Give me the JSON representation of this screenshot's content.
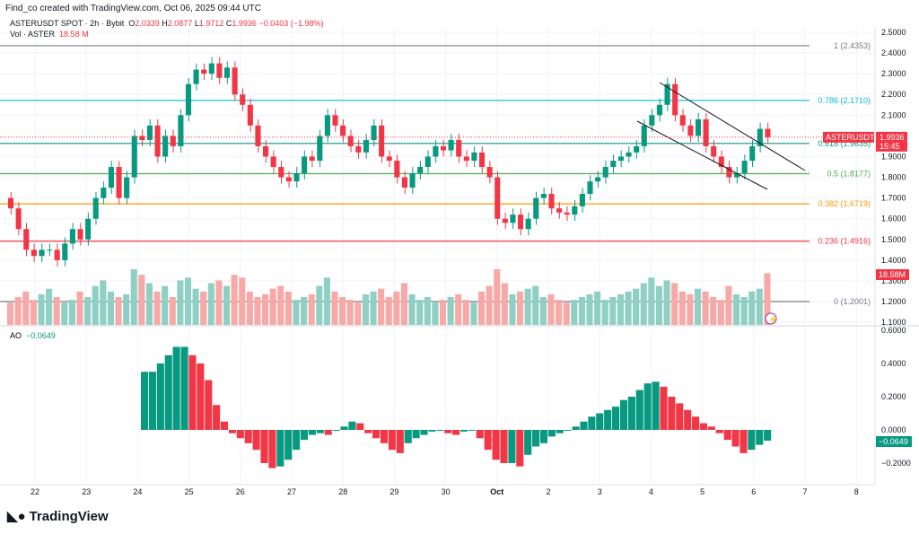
{
  "credit": "Find_co created with TradingView.com, Oct 06, 2025 09:44 UTC",
  "legend": {
    "symbol": "ASTERUSDT SPOT · 2h · Bybit",
    "o_label": "O",
    "o": "2.0339",
    "h_label": "H",
    "h": "2.0877",
    "l_label": "L",
    "l": "1.9712",
    "c_label": "C",
    "c": "1.9936",
    "change": "−0.0403 (−1.98%)",
    "vol_label": "Vol · ASTER",
    "vol": "18.58 M"
  },
  "ao": {
    "label": "AO",
    "value": "−0.0649"
  },
  "logo": "TradingView",
  "colors": {
    "up": "#089981",
    "down": "#f23645",
    "vol_up": "#8fcfc4",
    "vol_down": "#f7a9a7"
  },
  "chart_data": {
    "type": "candlestick",
    "price_axis": {
      "ticks": [
        "2.5000",
        "2.4000",
        "2.3000",
        "2.2000",
        "2.1000",
        "1.9000",
        "1.8000",
        "1.7000",
        "1.6000",
        "1.5000",
        "1.4000",
        "1.3000",
        "1.2000",
        "1.1000"
      ],
      "range": [
        1.1,
        2.5
      ]
    },
    "ao_axis": {
      "ticks": [
        "0.6000",
        "0.4000",
        "0.2000",
        "0.0000",
        "−0.2000"
      ],
      "range": [
        -0.25,
        0.6
      ]
    },
    "time_axis": [
      "22",
      "23",
      "24",
      "25",
      "26",
      "27",
      "28",
      "29",
      "30",
      "Oct",
      "2",
      "3",
      "4",
      "5",
      "6",
      "7",
      "8"
    ],
    "closes": [
      1.65,
      1.55,
      1.45,
      1.42,
      1.45,
      1.45,
      1.4,
      1.48,
      1.55,
      1.5,
      1.6,
      1.7,
      1.75,
      1.85,
      1.7,
      1.8,
      2.0,
      1.98,
      2.05,
      1.9,
      2.0,
      1.95,
      2.1,
      2.25,
      2.32,
      2.3,
      2.35,
      2.28,
      2.33,
      2.2,
      2.15,
      2.05,
      1.95,
      1.9,
      1.85,
      1.8,
      1.78,
      1.82,
      1.9,
      1.88,
      2.0,
      2.1,
      2.05,
      2.0,
      1.95,
      1.92,
      1.98,
      2.05,
      1.9,
      1.88,
      1.8,
      1.75,
      1.82,
      1.85,
      1.9,
      1.95,
      1.93,
      1.98,
      1.9,
      1.88,
      1.92,
      1.85,
      1.8,
      1.6,
      1.58,
      1.62,
      1.55,
      1.6,
      1.7,
      1.72,
      1.65,
      1.63,
      1.62,
      1.66,
      1.72,
      1.78,
      1.8,
      1.85,
      1.88,
      1.9,
      1.92,
      1.95,
      2.05,
      2.1,
      2.15,
      2.25,
      2.1,
      2.05,
      2.0,
      2.08,
      1.95,
      1.9,
      1.85,
      1.8,
      1.82,
      1.88,
      1.95,
      2.0339,
      1.9936
    ],
    "volume_m": [
      8,
      10,
      12,
      9,
      11,
      13,
      10,
      8,
      9,
      12,
      10,
      14,
      16,
      12,
      10,
      11,
      20,
      18,
      15,
      12,
      14,
      10,
      16,
      17,
      13,
      12,
      15,
      16,
      14,
      18,
      17,
      12,
      10,
      11,
      13,
      14,
      12,
      9,
      10,
      11,
      14,
      17,
      12,
      10,
      9,
      8,
      11,
      12,
      13,
      10,
      12,
      15,
      11,
      9,
      10,
      8,
      9,
      10,
      11,
      9,
      8,
      12,
      14,
      20,
      15,
      11,
      12,
      13,
      14,
      10,
      11,
      9,
      8,
      9,
      10,
      11,
      12,
      9,
      10,
      11,
      12,
      13,
      15,
      17,
      14,
      16,
      15,
      12,
      11,
      13,
      12,
      10,
      9,
      14,
      11,
      10,
      12,
      13,
      18.58
    ],
    "fib_levels": [
      {
        "label": "1 (2.4353)",
        "value": 2.4353,
        "color": "#787b86"
      },
      {
        "label": "0.786 (2.1710)",
        "value": 2.171,
        "color": "#00bcd4"
      },
      {
        "label": "0.618 (1.9635)",
        "value": 1.9635,
        "color": "#089981"
      },
      {
        "label": "0.5 (1.8177)",
        "value": 1.8177,
        "color": "#4caf50"
      },
      {
        "label": "0.382 (1.6719)",
        "value": 1.6719,
        "color": "#ff9800"
      },
      {
        "label": "0.236 (1.4916)",
        "value": 1.4916,
        "color": "#f23645"
      },
      {
        "label": "0 (1.2001)",
        "value": 1.2001,
        "color": "#787b86"
      }
    ],
    "last_price": {
      "symbol": "ASTERUSDT",
      "price": "1.9936",
      "countdown": "15:45",
      "value": 1.9936
    },
    "volume_badge": "18.58M",
    "ao_values": [
      0.35,
      0.35,
      0.4,
      0.45,
      0.5,
      0.5,
      0.45,
      0.4,
      0.3,
      0.15,
      0.05,
      -0.02,
      -0.05,
      -0.08,
      -0.12,
      -0.2,
      -0.23,
      -0.22,
      -0.18,
      -0.12,
      -0.06,
      -0.03,
      -0.02,
      -0.03,
      0.0,
      0.02,
      0.05,
      0.04,
      -0.02,
      -0.05,
      -0.08,
      -0.12,
      -0.14,
      -0.08,
      -0.05,
      -0.03,
      -0.01,
      0.0,
      -0.02,
      -0.03,
      -0.01,
      0.0,
      -0.05,
      -0.12,
      -0.18,
      -0.2,
      -0.2,
      -0.22,
      -0.15,
      -0.1,
      -0.08,
      -0.04,
      -0.02,
      0.0,
      0.02,
      0.05,
      0.08,
      0.1,
      0.12,
      0.14,
      0.18,
      0.2,
      0.24,
      0.28,
      0.29,
      0.26,
      0.2,
      0.16,
      0.12,
      0.08,
      0.04,
      0.02,
      -0.02,
      -0.06,
      -0.1,
      -0.14,
      -0.12,
      -0.09,
      -0.0649
    ],
    "ao_badge": "−0.0649"
  }
}
